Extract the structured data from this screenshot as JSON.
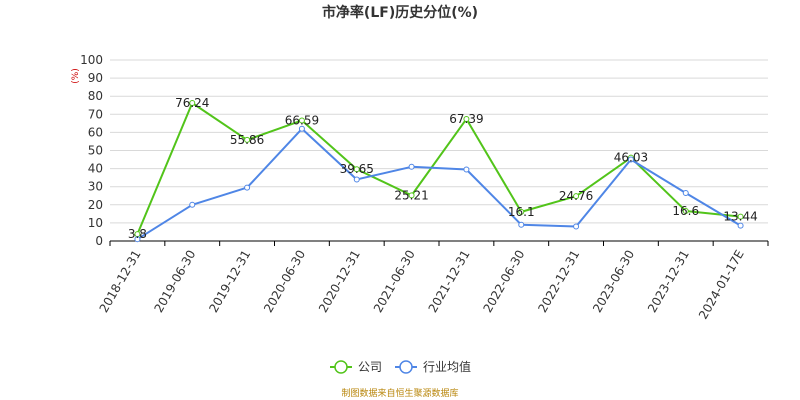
{
  "chart_data": {
    "type": "line",
    "title": "市净率(LF)历史分位(%)",
    "ylabel": "(%)",
    "ylim": [
      0,
      100
    ],
    "yticks": [
      0,
      10,
      20,
      30,
      40,
      50,
      60,
      70,
      80,
      90,
      100
    ],
    "grid": true,
    "legend": "bottom-center",
    "categories": [
      "2018-12-31",
      "2019-06-30",
      "2019-12-31",
      "2020-06-30",
      "2020-12-31",
      "2021-06-30",
      "2021-12-31",
      "2022-06-30",
      "2022-12-31",
      "2023-06-30",
      "2023-12-31",
      "2024-01-17E"
    ],
    "series": [
      {
        "name": "公司",
        "color": "#52c41a",
        "values": [
          3.8,
          76.24,
          55.86,
          66.59,
          39.65,
          25.21,
          67.39,
          16.1,
          24.76,
          46.03,
          16.6,
          13.44
        ],
        "labels": [
          "3.8",
          "76.24",
          "55.86",
          "66.59",
          "39.65",
          "25.21",
          "67.39",
          "16.1",
          "24.76",
          "46.03",
          "16.6",
          "13.44"
        ]
      },
      {
        "name": "行业均值",
        "color": "#4f86e6",
        "values": [
          1,
          20,
          29.5,
          62,
          34,
          41,
          39.5,
          9,
          8,
          45,
          26.5,
          8.5
        ]
      }
    ]
  },
  "source_note": "制图数据来自恒生聚源数据库"
}
